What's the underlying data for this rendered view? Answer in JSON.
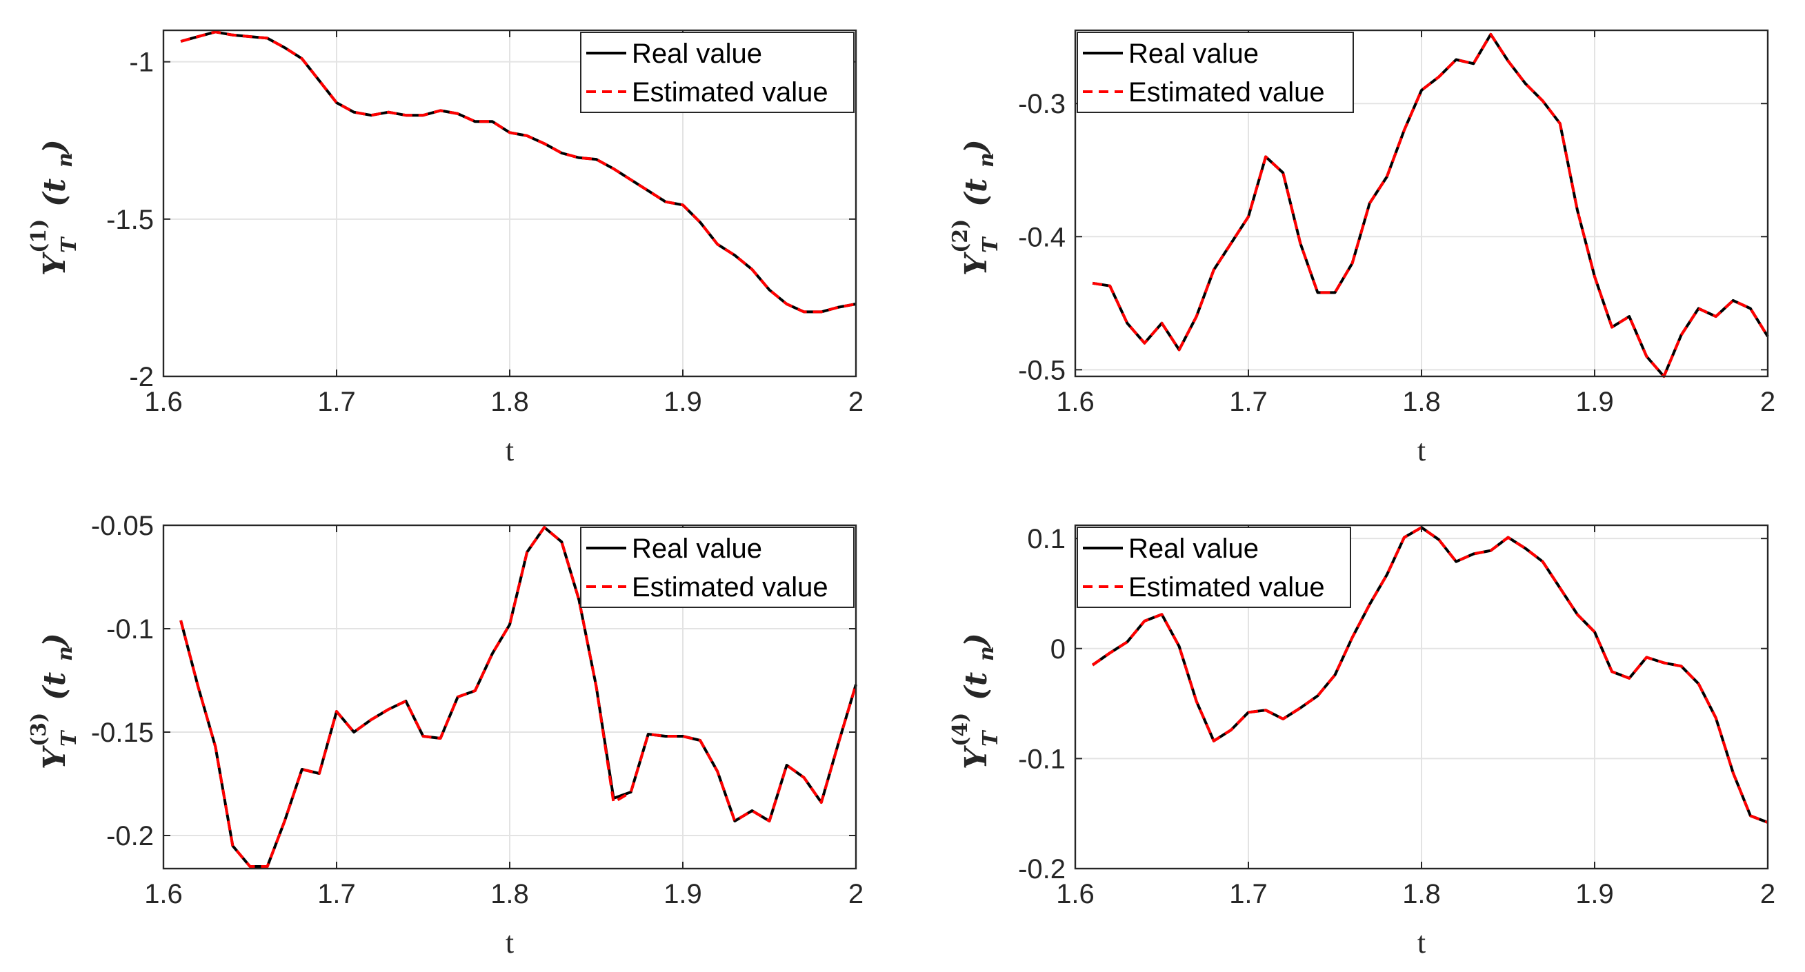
{
  "chart_data": [
    {
      "type": "line",
      "xlabel": "t",
      "ylabel": {
        "symbol": "Y",
        "superscript": "(1)",
        "subscript": "T",
        "argument": "(t",
        "argument_subscript": "n",
        "close": ")"
      },
      "xlim": [
        1.6,
        2.0
      ],
      "ylim": [
        -2.0,
        -0.9
      ],
      "xticks": [
        1.6,
        1.7,
        1.8,
        1.9,
        2.0
      ],
      "xtick_labels": [
        "1.6",
        "1.7",
        "1.8",
        "1.9",
        "2"
      ],
      "yticks": [
        -2.0,
        -1.5,
        -1.0
      ],
      "ytick_labels": [
        "-2",
        "-1.5",
        "-1"
      ],
      "grid": true,
      "legend": {
        "position": "top-right",
        "entries": [
          "Real value",
          "Estimated value"
        ]
      },
      "x": [
        1.61,
        1.62,
        1.63,
        1.64,
        1.65,
        1.66,
        1.67,
        1.68,
        1.69,
        1.7,
        1.71,
        1.72,
        1.73,
        1.74,
        1.75,
        1.76,
        1.77,
        1.78,
        1.79,
        1.8,
        1.81,
        1.82,
        1.83,
        1.84,
        1.85,
        1.86,
        1.87,
        1.88,
        1.89,
        1.9,
        1.91,
        1.92,
        1.93,
        1.94,
        1.95,
        1.96,
        1.97,
        1.98,
        1.99,
        2.0
      ],
      "series": [
        {
          "name": "Real value",
          "color": "#000000",
          "style": "solid",
          "values": [
            -0.935,
            -0.92,
            -0.905,
            -0.915,
            -0.92,
            -0.925,
            -0.955,
            -0.99,
            -1.06,
            -1.13,
            -1.16,
            -1.17,
            -1.16,
            -1.17,
            -1.17,
            -1.155,
            -1.165,
            -1.19,
            -1.19,
            -1.225,
            -1.235,
            -1.26,
            -1.29,
            -1.305,
            -1.31,
            -1.34,
            -1.375,
            -1.41,
            -1.445,
            -1.455,
            -1.51,
            -1.58,
            -1.615,
            -1.66,
            -1.725,
            -1.77,
            -1.795,
            -1.795,
            -1.78,
            -1.77
          ]
        },
        {
          "name": "Estimated value",
          "color": "#ff0000",
          "style": "dashed",
          "values": [
            -0.935,
            -0.92,
            -0.905,
            -0.915,
            -0.92,
            -0.925,
            -0.955,
            -0.99,
            -1.06,
            -1.13,
            -1.16,
            -1.17,
            -1.16,
            -1.17,
            -1.17,
            -1.155,
            -1.165,
            -1.19,
            -1.19,
            -1.225,
            -1.235,
            -1.26,
            -1.29,
            -1.305,
            -1.31,
            -1.34,
            -1.375,
            -1.41,
            -1.445,
            -1.455,
            -1.51,
            -1.58,
            -1.615,
            -1.66,
            -1.725,
            -1.77,
            -1.795,
            -1.795,
            -1.78,
            -1.77
          ]
        }
      ]
    },
    {
      "type": "line",
      "xlabel": "t",
      "ylabel": {
        "symbol": "Y",
        "superscript": "(2)",
        "subscript": "T",
        "argument": "(t",
        "argument_subscript": "n",
        "close": ")"
      },
      "xlim": [
        1.6,
        2.0
      ],
      "ylim": [
        -0.505,
        -0.245
      ],
      "xticks": [
        1.6,
        1.7,
        1.8,
        1.9,
        2.0
      ],
      "xtick_labels": [
        "1.6",
        "1.7",
        "1.8",
        "1.9",
        "2"
      ],
      "yticks": [
        -0.5,
        -0.4,
        -0.3
      ],
      "ytick_labels": [
        "-0.5",
        "-0.4",
        "-0.3"
      ],
      "grid": true,
      "legend": {
        "position": "top-left",
        "entries": [
          "Real value",
          "Estimated value"
        ]
      },
      "x": [
        1.61,
        1.62,
        1.63,
        1.64,
        1.65,
        1.66,
        1.67,
        1.68,
        1.69,
        1.7,
        1.71,
        1.72,
        1.73,
        1.74,
        1.75,
        1.76,
        1.77,
        1.78,
        1.79,
        1.8,
        1.81,
        1.82,
        1.83,
        1.84,
        1.85,
        1.86,
        1.87,
        1.88,
        1.89,
        1.9,
        1.91,
        1.92,
        1.93,
        1.94,
        1.95,
        1.96,
        1.97,
        1.98,
        1.99,
        2.0
      ],
      "series": [
        {
          "name": "Real value",
          "color": "#000000",
          "style": "solid",
          "values": [
            -0.435,
            -0.437,
            -0.465,
            -0.48,
            -0.465,
            -0.485,
            -0.46,
            -0.425,
            -0.405,
            -0.385,
            -0.34,
            -0.352,
            -0.405,
            -0.442,
            -0.442,
            -0.42,
            -0.375,
            -0.355,
            -0.32,
            -0.29,
            -0.28,
            -0.267,
            -0.27,
            -0.248,
            -0.268,
            -0.285,
            -0.298,
            -0.315,
            -0.38,
            -0.43,
            -0.468,
            -0.46,
            -0.49,
            -0.505,
            -0.474,
            -0.454,
            -0.46,
            -0.448,
            -0.454,
            -0.475
          ]
        },
        {
          "name": "Estimated value",
          "color": "#ff0000",
          "style": "dashed",
          "values": [
            -0.435,
            -0.437,
            -0.465,
            -0.48,
            -0.465,
            -0.485,
            -0.46,
            -0.425,
            -0.405,
            -0.385,
            -0.34,
            -0.352,
            -0.405,
            -0.442,
            -0.442,
            -0.42,
            -0.375,
            -0.355,
            -0.32,
            -0.29,
            -0.28,
            -0.267,
            -0.27,
            -0.248,
            -0.268,
            -0.285,
            -0.298,
            -0.315,
            -0.38,
            -0.43,
            -0.468,
            -0.46,
            -0.49,
            -0.505,
            -0.474,
            -0.454,
            -0.46,
            -0.448,
            -0.454,
            -0.475
          ]
        }
      ]
    },
    {
      "type": "line",
      "xlabel": "t",
      "ylabel": {
        "symbol": "Y",
        "superscript": "(3)",
        "subscript": "T",
        "argument": "(t",
        "argument_subscript": "n",
        "close": ")"
      },
      "xlim": [
        1.6,
        2.0
      ],
      "ylim": [
        -0.216,
        -0.05
      ],
      "xticks": [
        1.6,
        1.7,
        1.8,
        1.9,
        2.0
      ],
      "xtick_labels": [
        "1.6",
        "1.7",
        "1.8",
        "1.9",
        "2"
      ],
      "yticks": [
        -0.2,
        -0.15,
        -0.1,
        -0.05
      ],
      "ytick_labels": [
        "-0.2",
        "-0.15",
        "-0.1",
        "-0.05"
      ],
      "grid": true,
      "legend": {
        "position": "top-right",
        "entries": [
          "Real value",
          "Estimated value"
        ]
      },
      "x": [
        1.61,
        1.62,
        1.63,
        1.64,
        1.65,
        1.66,
        1.67,
        1.68,
        1.69,
        1.7,
        1.71,
        1.72,
        1.73,
        1.74,
        1.75,
        1.76,
        1.77,
        1.78,
        1.79,
        1.8,
        1.81,
        1.82,
        1.83,
        1.84,
        1.85,
        1.86,
        1.87,
        1.88,
        1.89,
        1.9,
        1.91,
        1.92,
        1.93,
        1.94,
        1.95,
        1.96,
        1.97,
        1.98,
        1.99,
        2.0
      ],
      "series": [
        {
          "name": "Real value",
          "color": "#000000",
          "style": "solid",
          "values": [
            -0.096,
            -0.128,
            -0.157,
            -0.205,
            -0.215,
            -0.215,
            -0.193,
            -0.168,
            -0.17,
            -0.14,
            -0.15,
            -0.144,
            -0.139,
            -0.135,
            -0.152,
            -0.153,
            -0.133,
            -0.13,
            -0.112,
            -0.098,
            -0.063,
            -0.051,
            -0.058,
            -0.086,
            -0.128,
            -0.182,
            -0.179,
            -0.151,
            -0.152,
            -0.152,
            -0.154,
            -0.169,
            -0.193,
            -0.188,
            -0.193,
            -0.166,
            -0.172,
            -0.184,
            -0.155,
            -0.127
          ]
        },
        {
          "name": "Estimated value",
          "color": "#ff0000",
          "style": "dashed",
          "values": [
            -0.096,
            -0.128,
            -0.157,
            -0.205,
            -0.215,
            -0.215,
            -0.193,
            -0.168,
            -0.17,
            -0.14,
            -0.15,
            -0.144,
            -0.139,
            -0.135,
            -0.152,
            -0.153,
            -0.133,
            -0.13,
            -0.112,
            -0.098,
            -0.063,
            -0.051,
            -0.058,
            -0.086,
            -0.128,
            -0.184,
            -0.179,
            -0.151,
            -0.152,
            -0.152,
            -0.154,
            -0.169,
            -0.193,
            -0.188,
            -0.193,
            -0.166,
            -0.172,
            -0.184,
            -0.155,
            -0.127
          ]
        }
      ]
    },
    {
      "type": "line",
      "xlabel": "t",
      "ylabel": {
        "symbol": "Y",
        "superscript": "(4)",
        "subscript": "T",
        "argument": "(t",
        "argument_subscript": "n",
        "close": ")"
      },
      "xlim": [
        1.6,
        2.0
      ],
      "ylim": [
        -0.2,
        0.112
      ],
      "xticks": [
        1.6,
        1.7,
        1.8,
        1.9,
        2.0
      ],
      "xtick_labels": [
        "1.6",
        "1.7",
        "1.8",
        "1.9",
        "2"
      ],
      "yticks": [
        -0.2,
        -0.1,
        0.0,
        0.1
      ],
      "ytick_labels": [
        "-0.2",
        "-0.1",
        "0",
        "0.1"
      ],
      "grid": true,
      "legend": {
        "position": "top-left",
        "entries": [
          "Real value",
          "Estimated value"
        ]
      },
      "x": [
        1.61,
        1.62,
        1.63,
        1.64,
        1.65,
        1.66,
        1.67,
        1.68,
        1.69,
        1.7,
        1.71,
        1.72,
        1.73,
        1.74,
        1.75,
        1.76,
        1.77,
        1.78,
        1.79,
        1.8,
        1.81,
        1.82,
        1.83,
        1.84,
        1.85,
        1.86,
        1.87,
        1.88,
        1.89,
        1.9,
        1.91,
        1.92,
        1.93,
        1.94,
        1.95,
        1.96,
        1.97,
        1.98,
        1.99,
        2.0
      ],
      "series": [
        {
          "name": "Real value",
          "color": "#000000",
          "style": "solid",
          "values": [
            -0.015,
            -0.004,
            0.006,
            0.025,
            0.031,
            0.002,
            -0.048,
            -0.084,
            -0.074,
            -0.058,
            -0.056,
            -0.064,
            -0.054,
            -0.043,
            -0.024,
            0.01,
            0.04,
            0.067,
            0.101,
            0.11,
            0.099,
            0.079,
            0.086,
            0.089,
            0.101,
            0.091,
            0.079,
            0.055,
            0.031,
            0.015,
            -0.021,
            -0.027,
            -0.008,
            -0.013,
            -0.016,
            -0.032,
            -0.063,
            -0.113,
            -0.152,
            -0.158
          ]
        },
        {
          "name": "Estimated value",
          "color": "#ff0000",
          "style": "dashed",
          "values": [
            -0.015,
            -0.004,
            0.006,
            0.025,
            0.031,
            0.002,
            -0.048,
            -0.084,
            -0.074,
            -0.058,
            -0.056,
            -0.064,
            -0.054,
            -0.043,
            -0.024,
            0.01,
            0.04,
            0.067,
            0.101,
            0.11,
            0.099,
            0.079,
            0.086,
            0.089,
            0.101,
            0.091,
            0.079,
            0.055,
            0.031,
            0.015,
            -0.021,
            -0.027,
            -0.008,
            -0.013,
            -0.016,
            -0.032,
            -0.063,
            -0.113,
            -0.152,
            -0.158
          ]
        }
      ]
    }
  ]
}
